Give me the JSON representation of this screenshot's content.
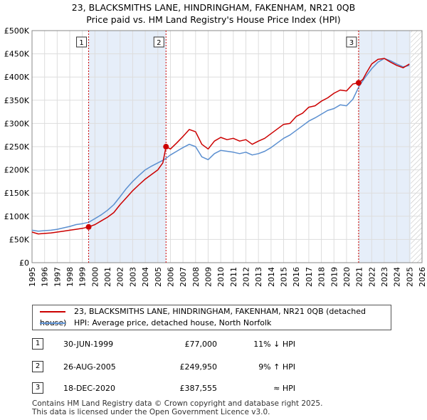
{
  "title_line1": "23, BLACKSMITHS LANE, HINDRINGHAM, FAKENHAM, NR21 0QB",
  "title_line2": "Price paid vs. HM Land Registry's House Price Index (HPI)",
  "colors": {
    "price_line": "#cc0000",
    "hpi_line": "#5b8fd0",
    "shade": "#e6eef9",
    "grid": "#dddddd",
    "marker_line": "#cc0000"
  },
  "chart_data": {
    "type": "line",
    "xlim": [
      1995,
      2026
    ],
    "ylim": [
      0,
      500000
    ],
    "y_ticks": [
      0,
      50000,
      100000,
      150000,
      200000,
      250000,
      300000,
      350000,
      400000,
      450000,
      500000
    ],
    "y_tick_labels": [
      "£0",
      "£50K",
      "£100K",
      "£150K",
      "£200K",
      "£250K",
      "£300K",
      "£350K",
      "£400K",
      "£450K",
      "£500K"
    ],
    "x_ticks": [
      1995,
      1996,
      1997,
      1998,
      1999,
      2000,
      2001,
      2002,
      2003,
      2004,
      2005,
      2006,
      2007,
      2008,
      2009,
      2010,
      2011,
      2012,
      2013,
      2014,
      2015,
      2016,
      2017,
      2018,
      2019,
      2020,
      2021,
      2022,
      2023,
      2024,
      2025,
      2026
    ],
    "shaded_ranges": [
      [
        1999.5,
        2005.65
      ],
      [
        2020.96,
        2025.1
      ]
    ],
    "hatch_from": 2025.1,
    "series": [
      {
        "name": "23, BLACKSMITHS LANE, HINDRINGHAM, FAKENHAM, NR21 0QB (detached house)",
        "color": "#cc0000",
        "x": [
          1995.0,
          1995.5,
          1996.0,
          1996.5,
          1997.0,
          1997.5,
          1998.0,
          1998.5,
          1999.0,
          1999.5,
          2000.0,
          2000.5,
          2001.0,
          2001.5,
          2002.0,
          2002.5,
          2003.0,
          2003.5,
          2004.0,
          2004.5,
          2005.0,
          2005.4,
          2005.65,
          2006.0,
          2006.5,
          2007.0,
          2007.5,
          2008.0,
          2008.5,
          2009.0,
          2009.5,
          2010.0,
          2010.5,
          2011.0,
          2011.5,
          2012.0,
          2012.5,
          2013.0,
          2013.5,
          2014.0,
          2014.5,
          2015.0,
          2015.5,
          2016.0,
          2016.5,
          2017.0,
          2017.5,
          2018.0,
          2018.5,
          2019.0,
          2019.5,
          2020.0,
          2020.5,
          2020.96,
          2021.3,
          2021.6,
          2022.0,
          2022.5,
          2023.0,
          2023.5,
          2024.0,
          2024.5,
          2025.0
        ],
        "values": [
          66000,
          62000,
          63000,
          64000,
          66000,
          68000,
          70000,
          72000,
          74000,
          77000,
          82000,
          90000,
          98000,
          108000,
          125000,
          140000,
          155000,
          168000,
          180000,
          190000,
          200000,
          215000,
          249950,
          245000,
          258000,
          272000,
          287000,
          282000,
          255000,
          245000,
          262000,
          270000,
          265000,
          268000,
          262000,
          265000,
          255000,
          262000,
          268000,
          278000,
          288000,
          298000,
          300000,
          315000,
          322000,
          335000,
          338000,
          348000,
          355000,
          365000,
          372000,
          370000,
          385000,
          387555,
          395000,
          410000,
          428000,
          438000,
          440000,
          432000,
          425000,
          420000,
          428000
        ]
      },
      {
        "name": "HPI: Average price, detached house, North Norfolk",
        "color": "#5b8fd0",
        "x": [
          1995.0,
          1995.5,
          1996.0,
          1996.5,
          1997.0,
          1997.5,
          1998.0,
          1998.5,
          1999.0,
          1999.5,
          2000.0,
          2000.5,
          2001.0,
          2001.5,
          2002.0,
          2002.5,
          2003.0,
          2003.5,
          2004.0,
          2004.5,
          2005.0,
          2005.5,
          2006.0,
          2006.5,
          2007.0,
          2007.5,
          2008.0,
          2008.5,
          2009.0,
          2009.5,
          2010.0,
          2010.5,
          2011.0,
          2011.5,
          2012.0,
          2012.5,
          2013.0,
          2013.5,
          2014.0,
          2014.5,
          2015.0,
          2015.5,
          2016.0,
          2016.5,
          2017.0,
          2017.5,
          2018.0,
          2018.5,
          2019.0,
          2019.5,
          2020.0,
          2020.5,
          2021.0,
          2021.5,
          2022.0,
          2022.5,
          2023.0,
          2023.5,
          2024.0,
          2024.5,
          2025.0
        ],
        "values": [
          70000,
          68000,
          69000,
          70000,
          72000,
          75000,
          78000,
          82000,
          84000,
          87000,
          95000,
          103000,
          113000,
          125000,
          142000,
          160000,
          175000,
          188000,
          200000,
          208000,
          215000,
          222000,
          232000,
          240000,
          248000,
          255000,
          250000,
          228000,
          222000,
          235000,
          242000,
          240000,
          238000,
          235000,
          238000,
          232000,
          235000,
          240000,
          248000,
          258000,
          268000,
          275000,
          285000,
          295000,
          305000,
          312000,
          320000,
          328000,
          332000,
          340000,
          338000,
          352000,
          380000,
          400000,
          418000,
          432000,
          440000,
          435000,
          428000,
          422000,
          425000
        ]
      }
    ],
    "sales_markers": [
      {
        "label": "1",
        "x": 1999.5,
        "y": 77000
      },
      {
        "label": "2",
        "x": 2005.65,
        "y": 249950
      },
      {
        "label": "3",
        "x": 2020.96,
        "y": 387555
      }
    ]
  },
  "legend": {
    "price_label": "23, BLACKSMITHS LANE, HINDRINGHAM, FAKENHAM, NR21 0QB (detached house)",
    "hpi_label": "HPI: Average price, detached house, North Norfolk"
  },
  "sales": [
    {
      "num": "1",
      "date": "30-JUN-1999",
      "price": "£77,000",
      "hpi": "11% ↓ HPI"
    },
    {
      "num": "2",
      "date": "26-AUG-2005",
      "price": "£249,950",
      "hpi": "9% ↑ HPI"
    },
    {
      "num": "3",
      "date": "18-DEC-2020",
      "price": "£387,555",
      "hpi": "≈ HPI"
    }
  ],
  "footer_line1": "Contains HM Land Registry data © Crown copyright and database right 2025.",
  "footer_line2": "This data is licensed under the Open Government Licence v3.0."
}
